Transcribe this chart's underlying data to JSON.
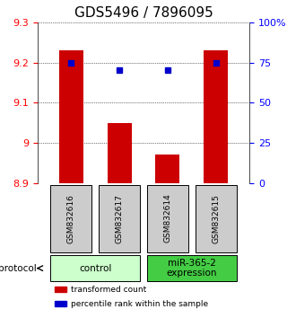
{
  "title": "GDS5496 / 7896095",
  "samples": [
    "GSM832616",
    "GSM832617",
    "GSM832614",
    "GSM832615"
  ],
  "bar_values": [
    9.23,
    9.05,
    8.97,
    9.23
  ],
  "percentile_values": [
    75,
    70,
    70,
    75
  ],
  "ymin": 8.9,
  "ymax": 9.3,
  "yticks": [
    8.9,
    9.0,
    9.1,
    9.2,
    9.3
  ],
  "ytick_labels": [
    "8.9",
    "9",
    "9.1",
    "9.2",
    "9.3"
  ],
  "right_yticks": [
    0,
    25,
    50,
    75,
    100
  ],
  "right_ytick_labels": [
    "0",
    "25",
    "50",
    "75",
    "100%"
  ],
  "bar_color": "#cc0000",
  "percentile_color": "#0000cc",
  "bar_width": 0.5,
  "groups": [
    {
      "label": "control",
      "samples": [
        "GSM832616",
        "GSM832617"
      ],
      "color": "#ccffcc"
    },
    {
      "label": "miR-365-2\nexpression",
      "samples": [
        "GSM832614",
        "GSM832615"
      ],
      "color": "#44cc44"
    }
  ],
  "protocol_label": "protocol",
  "legend_items": [
    {
      "color": "#cc0000",
      "label": "transformed count"
    },
    {
      "color": "#0000cc",
      "label": "percentile rank within the sample"
    }
  ],
  "grid_color": "black",
  "sample_box_color": "#cccccc",
  "title_fontsize": 11,
  "tick_fontsize": 8,
  "label_fontsize": 8
}
